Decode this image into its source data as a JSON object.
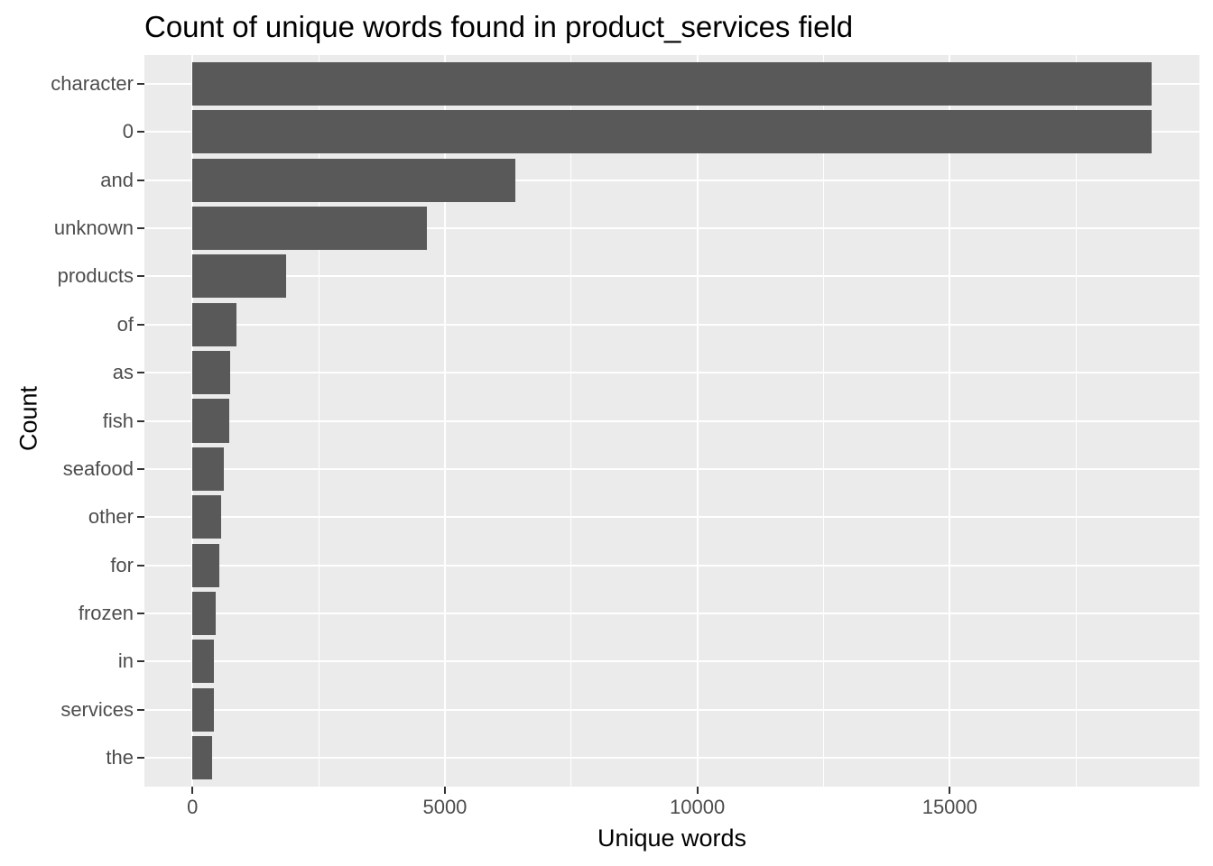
{
  "chart_data": {
    "type": "bar",
    "orientation": "horizontal",
    "title": "Count of unique words found in product_services field",
    "xlabel": "Unique words",
    "ylabel": "Count",
    "categories": [
      "character",
      "0",
      "and",
      "unknown",
      "products",
      "of",
      "as",
      "fish",
      "seafood",
      "other",
      "for",
      "frozen",
      "in",
      "services",
      "the"
    ],
    "values": [
      19000,
      19000,
      6400,
      4640,
      1860,
      865,
      745,
      730,
      625,
      565,
      530,
      460,
      430,
      425,
      380
    ],
    "x_ticks": [
      0,
      5000,
      10000,
      15000
    ],
    "x_minor_ticks": [
      2500,
      7500,
      12500,
      17500
    ],
    "xlim": [
      0,
      19950
    ],
    "grid": true,
    "legend_position": "none"
  },
  "colors": {
    "bar": "#595959",
    "panel": "#ebebeb",
    "grid": "#ffffff",
    "tick_label": "#4d4d4d",
    "tick_mark": "#333333",
    "text": "#000000",
    "background": "#ffffff"
  }
}
